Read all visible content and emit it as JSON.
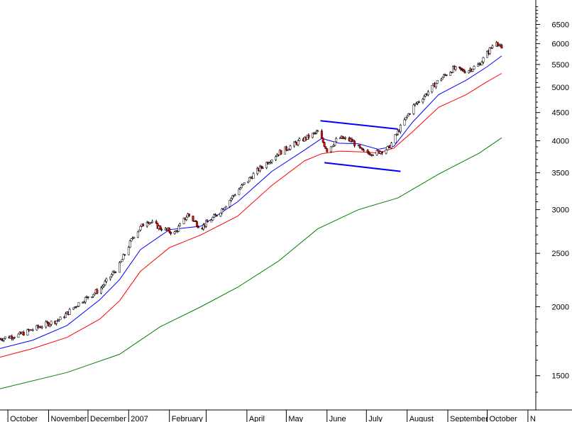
{
  "chart_data": {
    "type": "candlestick",
    "title": "",
    "xlabel": "",
    "ylabel": "",
    "y_scale": "log",
    "ylim": [
      1300,
      7200
    ],
    "y_ticks": [
      1500,
      2000,
      2500,
      3000,
      3500,
      4000,
      4500,
      5000,
      5500,
      6000,
      6500
    ],
    "y_tick_labels": [
      "1500",
      "2000",
      "2500",
      "3000",
      "3500",
      "4000",
      "4500",
      "5000",
      "5500",
      "6000",
      "6500"
    ],
    "y_axis_position": "right",
    "grid": false,
    "legend": "none",
    "x_range": [
      "2006-09-25",
      "2007-11-07"
    ],
    "x_ticks": [
      {
        "date": "2006-10-01",
        "label": "October"
      },
      {
        "date": "2006-11-01",
        "label": "November"
      },
      {
        "date": "2006-12-01",
        "label": "December"
      },
      {
        "date": "2007-01-01",
        "label": "2007"
      },
      {
        "date": "2007-02-01",
        "label": "February"
      },
      {
        "date": "2007-03-01",
        "label": ""
      },
      {
        "date": "2007-04-01",
        "label": "April"
      },
      {
        "date": "2007-05-01",
        "label": "May"
      },
      {
        "date": "2007-06-01",
        "label": "June"
      },
      {
        "date": "2007-07-01",
        "label": "July"
      },
      {
        "date": "2007-08-01",
        "label": "August"
      },
      {
        "date": "2007-09-01",
        "label": "September"
      },
      {
        "date": "2007-10-01",
        "label": "October"
      },
      {
        "date": "2007-11-01",
        "label": "N"
      }
    ],
    "price_close": [
      [
        "2006-09-25",
        1750
      ],
      [
        "2006-10-10",
        1780
      ],
      [
        "2006-10-25",
        1840
      ],
      [
        "2006-11-10",
        1900
      ],
      [
        "2006-11-25",
        2040
      ],
      [
        "2006-12-10",
        2150
      ],
      [
        "2006-12-25",
        2380
      ],
      [
        "2007-01-05",
        2700
      ],
      [
        "2007-01-15",
        2870
      ],
      [
        "2007-01-25",
        2780
      ],
      [
        "2007-02-05",
        2720
      ],
      [
        "2007-02-15",
        2940
      ],
      [
        "2007-02-25",
        2780
      ],
      [
        "2007-03-10",
        2950
      ],
      [
        "2007-03-25",
        3250
      ],
      [
        "2007-04-10",
        3550
      ],
      [
        "2007-04-25",
        3800
      ],
      [
        "2007-05-10",
        3980
      ],
      [
        "2007-05-25",
        4150
      ],
      [
        "2007-06-01",
        3850
      ],
      [
        "2007-06-10",
        4050
      ],
      [
        "2007-06-20",
        4000
      ],
      [
        "2007-06-28",
        3820
      ],
      [
        "2007-07-08",
        3800
      ],
      [
        "2007-07-18",
        3880
      ],
      [
        "2007-07-25",
        4150
      ],
      [
        "2007-08-05",
        4600
      ],
      [
        "2007-08-15",
        4850
      ],
      [
        "2007-08-25",
        5150
      ],
      [
        "2007-09-05",
        5400
      ],
      [
        "2007-09-15",
        5350
      ],
      [
        "2007-09-25",
        5500
      ],
      [
        "2007-10-05",
        5950
      ],
      [
        "2007-10-08",
        6080
      ],
      [
        "2007-10-12",
        5850
      ]
    ],
    "series": [
      {
        "color": "#0000ff",
        "points": [
          [
            "2006-09-25",
            1680
          ],
          [
            "2006-10-20",
            1740
          ],
          [
            "2006-11-15",
            1850
          ],
          [
            "2006-12-10",
            2060
          ],
          [
            "2006-12-25",
            2240
          ],
          [
            "2007-01-10",
            2540
          ],
          [
            "2007-02-01",
            2760
          ],
          [
            "2007-02-25",
            2800
          ],
          [
            "2007-03-25",
            3100
          ],
          [
            "2007-04-20",
            3520
          ],
          [
            "2007-05-15",
            3850
          ],
          [
            "2007-05-28",
            4040
          ],
          [
            "2007-06-10",
            3960
          ],
          [
            "2007-06-25",
            3950
          ],
          [
            "2007-07-10",
            3860
          ],
          [
            "2007-07-22",
            3910
          ],
          [
            "2007-08-05",
            4320
          ],
          [
            "2007-08-25",
            4850
          ],
          [
            "2007-09-15",
            5150
          ],
          [
            "2007-10-01",
            5450
          ],
          [
            "2007-10-12",
            5700
          ]
        ]
      },
      {
        "color": "#ff0000",
        "points": [
          [
            "2006-09-25",
            1620
          ],
          [
            "2006-10-20",
            1680
          ],
          [
            "2006-11-15",
            1760
          ],
          [
            "2006-12-10",
            1900
          ],
          [
            "2006-12-25",
            2050
          ],
          [
            "2007-01-10",
            2320
          ],
          [
            "2007-02-01",
            2560
          ],
          [
            "2007-02-25",
            2700
          ],
          [
            "2007-03-25",
            2920
          ],
          [
            "2007-04-20",
            3320
          ],
          [
            "2007-05-15",
            3680
          ],
          [
            "2007-05-28",
            3790
          ],
          [
            "2007-06-10",
            3830
          ],
          [
            "2007-06-25",
            3820
          ],
          [
            "2007-07-10",
            3800
          ],
          [
            "2007-07-22",
            3880
          ],
          [
            "2007-08-05",
            4150
          ],
          [
            "2007-08-25",
            4600
          ],
          [
            "2007-09-15",
            4850
          ],
          [
            "2007-10-01",
            5120
          ],
          [
            "2007-10-12",
            5300
          ]
        ]
      },
      {
        "color": "#008000",
        "points": [
          [
            "2006-09-25",
            1420
          ],
          [
            "2006-11-15",
            1520
          ],
          [
            "2006-12-25",
            1640
          ],
          [
            "2007-01-25",
            1840
          ],
          [
            "2007-02-25",
            2000
          ],
          [
            "2007-03-25",
            2170
          ],
          [
            "2007-04-25",
            2420
          ],
          [
            "2007-05-25",
            2770
          ],
          [
            "2007-06-25",
            3000
          ],
          [
            "2007-07-25",
            3150
          ],
          [
            "2007-08-25",
            3480
          ],
          [
            "2007-09-25",
            3800
          ],
          [
            "2007-10-12",
            4050
          ]
        ]
      }
    ],
    "annotations": [
      {
        "type": "trendline",
        "color": "#0000ff",
        "from": [
          "2007-05-27",
          4350
        ],
        "to": [
          "2007-07-25",
          4200
        ]
      },
      {
        "type": "trendline",
        "color": "#0000ff",
        "from": [
          "2007-05-30",
          3650
        ],
        "to": [
          "2007-07-27",
          3520
        ]
      }
    ]
  }
}
